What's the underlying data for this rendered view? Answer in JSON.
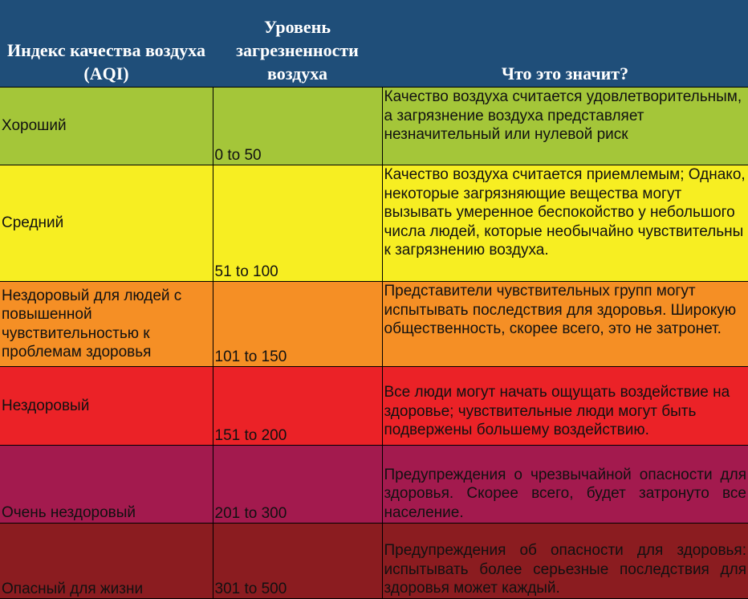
{
  "header": {
    "col_index": "Индекс качества воздуха (AQI)",
    "col_level": "Уровень загрезненности воздуха",
    "col_meaning": "Что это значит?"
  },
  "rows": [
    {
      "level": "Хороший",
      "range": "0 to 50",
      "meaning": "Качество воздуха считается удовлетворительным, а загрязнение воздуха представляет незначительный или нулевой риск",
      "color": "#a4c639"
    },
    {
      "level": "Средний",
      "range": "51 to 100",
      "meaning": "Качество воздуха считается приемлемым; Однако, некоторые загрязняющие вещества могут вызывать умеренное беспокойство у небольшого числа людей, которые необычайно чувствительны к загрязнению воздуха.",
      "color": "#f7ee22"
    },
    {
      "level": "Нездоровый для людей с повышенной чувствительностью к проблемам здоровья",
      "range": "101 to 150",
      "meaning": "Представители чувствительных групп могут испытывать последствия для здоровья. Широкую общественность, скорее всего, это не затронет.",
      "color": "#f58f25"
    },
    {
      "level": "Нездоровый",
      "range": "151 to 200",
      "meaning": "Все люди могут начать ощущать воздействие на здоровье; чувствительные люди могут быть подвержены большему воздействию.",
      "color": "#eb2227"
    },
    {
      "level": "Очень нездоровый",
      "range": "201 to 300",
      "meaning": "Предупреждения о чрезвычайной опасности для здоровья. Скорее всего, будет затронуто все население.",
      "color": "#a31a4e"
    },
    {
      "level": "Опасный для жизни",
      "range": "301 to 500",
      "meaning": "Предупреждения об опасности для здоровья: испытывать более серьезные последствия для здоровья может каждый.",
      "color": "#8b1c20"
    }
  ],
  "colors": {
    "header_bg": "#1f4e79",
    "header_text": "#ffffff"
  }
}
